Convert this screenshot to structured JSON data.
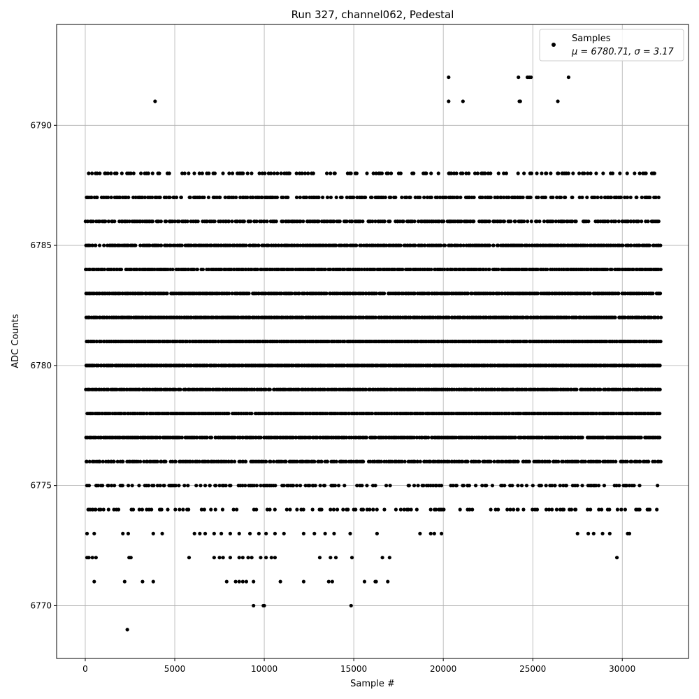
{
  "chart_data": {
    "type": "scatter",
    "title": "Run 327, channel062, Pedestal",
    "xlabel": "Sample #",
    "ylabel": "ADC Counts",
    "xlim": [
      -1600,
      33700
    ],
    "ylim": [
      6767.8,
      6794.2
    ],
    "x_ticks": [
      0,
      5000,
      10000,
      15000,
      20000,
      25000,
      30000
    ],
    "x_tick_labels": [
      "0",
      "5000",
      "10000",
      "15000",
      "20000",
      "25000",
      "30000"
    ],
    "y_ticks": [
      6770,
      6775,
      6780,
      6785,
      6790
    ],
    "y_tick_labels": [
      "6770",
      "6775",
      "6780",
      "6785",
      "6790"
    ],
    "grid": true,
    "legend_position": "top-right",
    "marker_color": "#000000",
    "n_samples": 32100,
    "series": [
      {
        "name": "Samples",
        "stats_label": "μ = 6780.71, σ = 3.17",
        "mean": 6780.71,
        "std": 3.17,
        "level_fill_fraction": {
          "6777": 0.93,
          "6778": 0.97,
          "6779": 0.98,
          "6780": 0.99,
          "6781": 0.99,
          "6782": 0.99,
          "6783": 0.97,
          "6784": 0.92,
          "6785": 0.9,
          "6776": 0.8,
          "6786": 0.78,
          "6787": 0.62,
          "6775": 0.45,
          "6788": 0.38,
          "6774": 0.3
        },
        "sparse_points": [
          [
            2350,
            6769
          ],
          [
            9400,
            6770
          ],
          [
            9950,
            6770
          ],
          [
            10000,
            6770
          ],
          [
            14850,
            6770
          ],
          [
            500,
            6771
          ],
          [
            2200,
            6771
          ],
          [
            3200,
            6771
          ],
          [
            3800,
            6771
          ],
          [
            7900,
            6771
          ],
          [
            8400,
            6771
          ],
          [
            8600,
            6771
          ],
          [
            8800,
            6771
          ],
          [
            9000,
            6771
          ],
          [
            9400,
            6771
          ],
          [
            10900,
            6771
          ],
          [
            12200,
            6771
          ],
          [
            13600,
            6771
          ],
          [
            13800,
            6771
          ],
          [
            15600,
            6771
          ],
          [
            16200,
            6771
          ],
          [
            16250,
            6771
          ],
          [
            16900,
            6771
          ],
          [
            100,
            6772
          ],
          [
            200,
            6772
          ],
          [
            400,
            6772
          ],
          [
            600,
            6772
          ],
          [
            2450,
            6772
          ],
          [
            2550,
            6772
          ],
          [
            5800,
            6772
          ],
          [
            7200,
            6772
          ],
          [
            7500,
            6772
          ],
          [
            7700,
            6772
          ],
          [
            8100,
            6772
          ],
          [
            8600,
            6772
          ],
          [
            8800,
            6772
          ],
          [
            9100,
            6772
          ],
          [
            9300,
            6772
          ],
          [
            9800,
            6772
          ],
          [
            10100,
            6772
          ],
          [
            10400,
            6772
          ],
          [
            10600,
            6772
          ],
          [
            13100,
            6772
          ],
          [
            13700,
            6772
          ],
          [
            14000,
            6772
          ],
          [
            14900,
            6772
          ],
          [
            16600,
            6772
          ],
          [
            17000,
            6772
          ],
          [
            29700,
            6772
          ],
          [
            100,
            6773
          ],
          [
            500,
            6773
          ],
          [
            2100,
            6773
          ],
          [
            2400,
            6773
          ],
          [
            3800,
            6773
          ],
          [
            4300,
            6773
          ],
          [
            6100,
            6773
          ],
          [
            6400,
            6773
          ],
          [
            6700,
            6773
          ],
          [
            7200,
            6773
          ],
          [
            7600,
            6773
          ],
          [
            8100,
            6773
          ],
          [
            8600,
            6773
          ],
          [
            9200,
            6773
          ],
          [
            9700,
            6773
          ],
          [
            10100,
            6773
          ],
          [
            10600,
            6773
          ],
          [
            11100,
            6773
          ],
          [
            12200,
            6773
          ],
          [
            12800,
            6773
          ],
          [
            13400,
            6773
          ],
          [
            13900,
            6773
          ],
          [
            14800,
            6773
          ],
          [
            16300,
            6773
          ],
          [
            18700,
            6773
          ],
          [
            19300,
            6773
          ],
          [
            19500,
            6773
          ],
          [
            19900,
            6773
          ],
          [
            27500,
            6773
          ],
          [
            28100,
            6773
          ],
          [
            28400,
            6773
          ],
          [
            28900,
            6773
          ],
          [
            29300,
            6773
          ],
          [
            30300,
            6773
          ],
          [
            30400,
            6773
          ],
          [
            20300,
            6791
          ],
          [
            21100,
            6791
          ],
          [
            24250,
            6791
          ],
          [
            24300,
            6791
          ],
          [
            26400,
            6791
          ],
          [
            3900,
            6791
          ],
          [
            20300,
            6792
          ],
          [
            24200,
            6792
          ],
          [
            24700,
            6792
          ],
          [
            24800,
            6792
          ],
          [
            24900,
            6792
          ],
          [
            27000,
            6792
          ]
        ]
      }
    ]
  }
}
